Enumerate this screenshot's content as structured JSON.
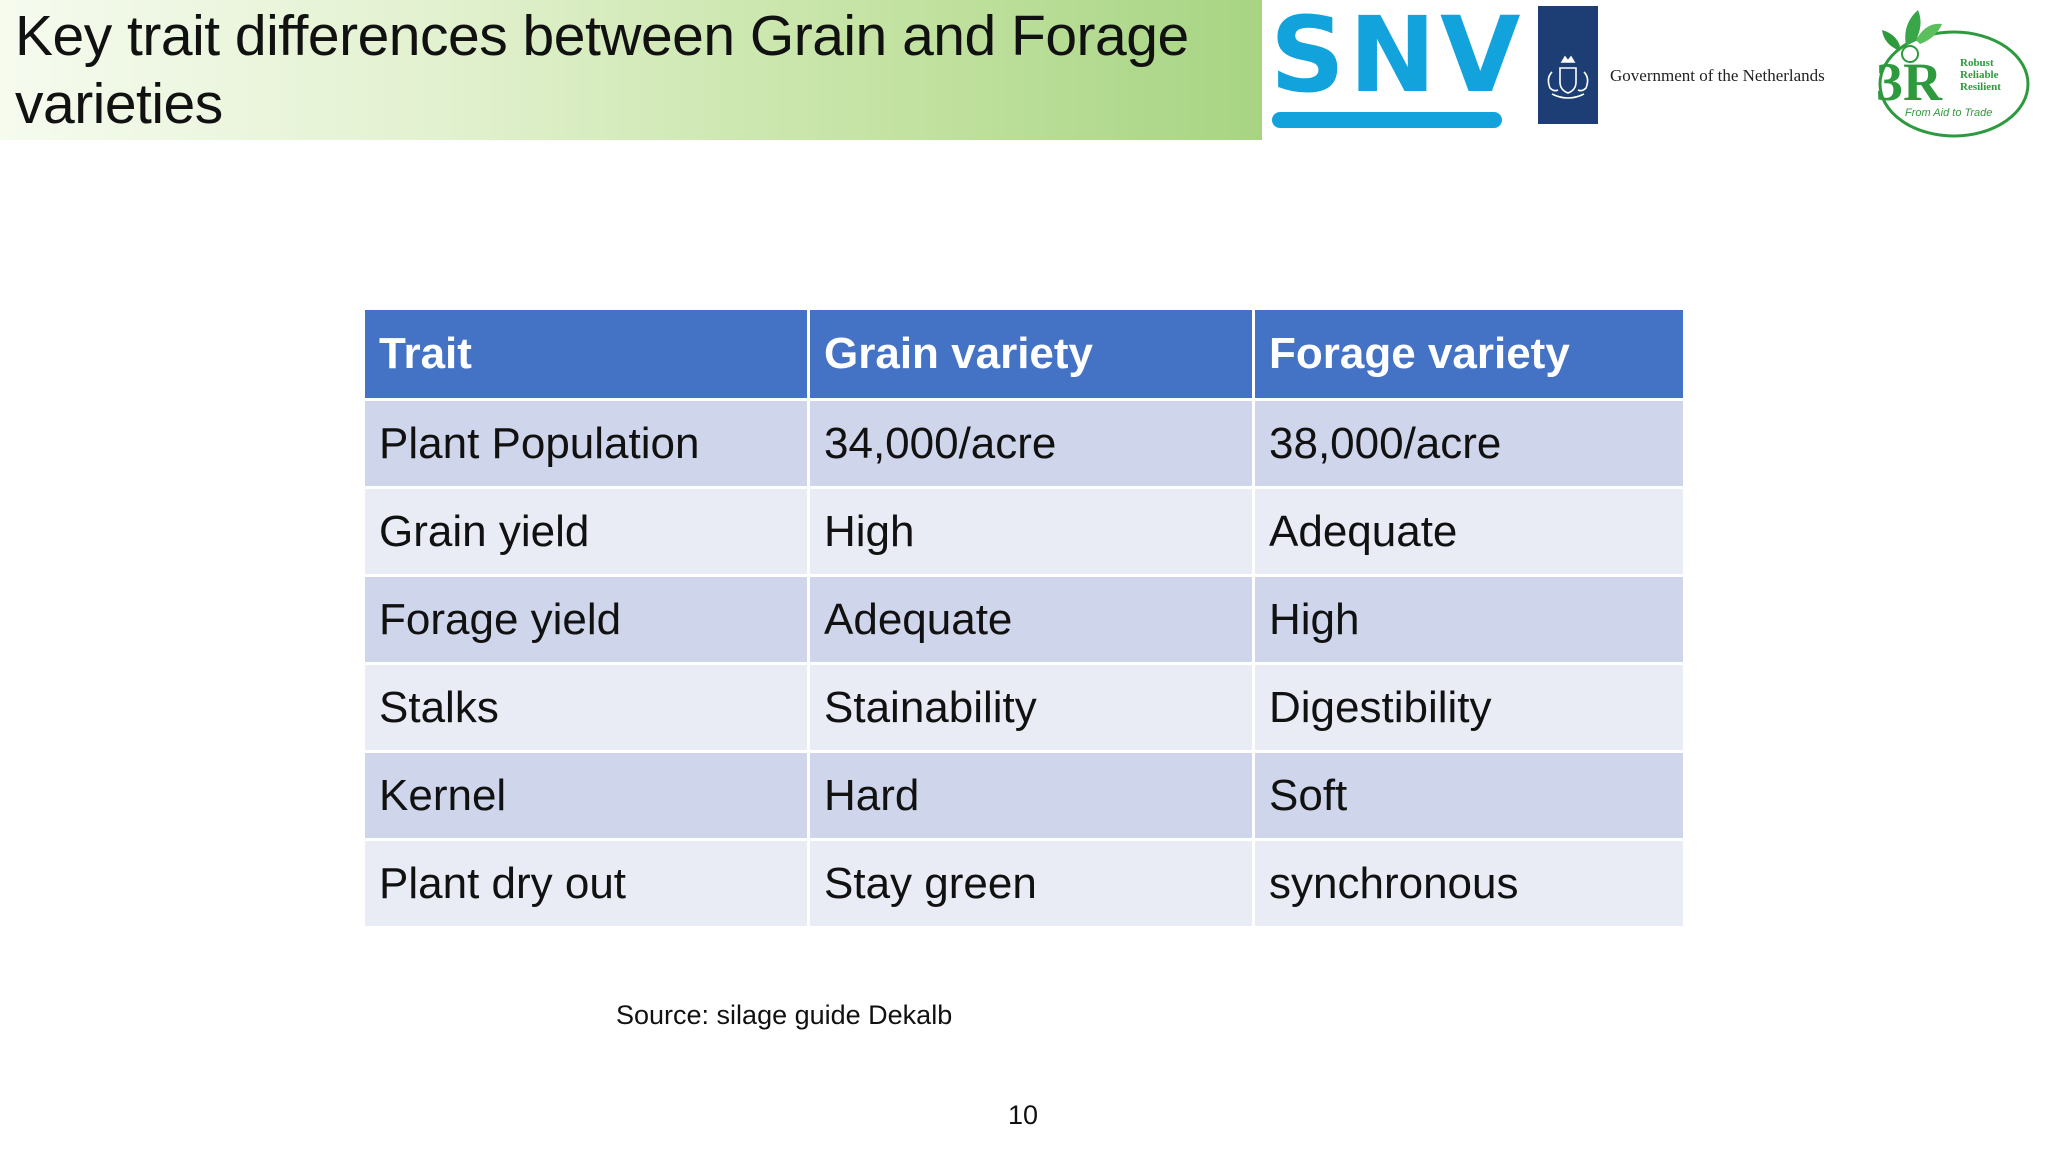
{
  "slide": {
    "title": "Key trait differences between Grain and Forage varieties",
    "source": "Source: silage guide Dekalb",
    "page_number": "10"
  },
  "logos": {
    "snv": "SNV",
    "government": "Government of the Netherlands",
    "r3_main": "3R",
    "r3_words": [
      "Robust",
      "Reliable",
      "Resilient"
    ],
    "r3_tagline": "From Aid to Trade"
  },
  "colors": {
    "header": "#4472c4",
    "row_odd": "#cfd5ea",
    "row_even": "#e9ebf5",
    "snv_blue": "#12a3dd",
    "gov_navy": "#1d3e75",
    "r3_green": "#2e9a3e"
  },
  "table": {
    "headers": [
      "Trait",
      "Grain variety",
      "Forage variety"
    ],
    "rows": [
      [
        "Plant Population",
        "34,000/acre",
        "38,000/acre"
      ],
      [
        "Grain yield",
        "High",
        "Adequate"
      ],
      [
        "Forage yield",
        "Adequate",
        "High"
      ],
      [
        "Stalks",
        "Stainability",
        "Digestibility"
      ],
      [
        "Kernel",
        "Hard",
        "Soft"
      ],
      [
        "Plant dry out",
        "Stay green",
        "synchronous"
      ]
    ]
  }
}
